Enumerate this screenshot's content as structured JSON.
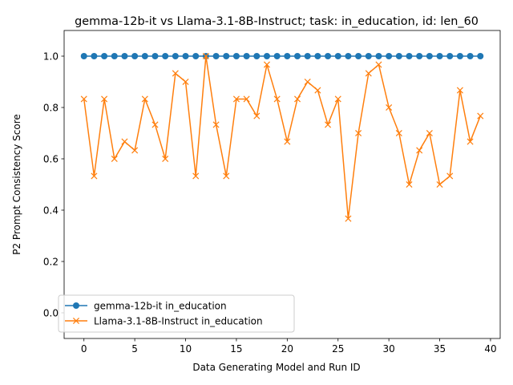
{
  "chart_data": {
    "type": "line",
    "title": "gemma-12b-it vs Llama-3.1-8B-Instruct; task: in_education, id: len_60",
    "xlabel": "Data Generating Model and Run ID",
    "ylabel": "P2 Prompt Consistency Score",
    "xlim": [
      -1.95,
      40.95
    ],
    "ylim": [
      -0.1,
      1.1
    ],
    "xticks": [
      0,
      5,
      10,
      15,
      20,
      25,
      30,
      35,
      40
    ],
    "yticks": [
      0.0,
      0.2,
      0.4,
      0.6,
      0.8,
      1.0
    ],
    "xtick_labels": [
      "0",
      "5",
      "10",
      "15",
      "20",
      "25",
      "30",
      "35",
      "40"
    ],
    "ytick_labels": [
      "0.0",
      "0.2",
      "0.4",
      "0.6",
      "0.8",
      "1.0"
    ],
    "grid": false,
    "legend_position": "lower-left",
    "x": [
      0,
      1,
      2,
      3,
      4,
      5,
      6,
      7,
      8,
      9,
      10,
      11,
      12,
      13,
      14,
      15,
      16,
      17,
      18,
      19,
      20,
      21,
      22,
      23,
      24,
      25,
      26,
      27,
      28,
      29,
      30,
      31,
      32,
      33,
      34,
      35,
      36,
      37,
      38,
      39
    ],
    "series": [
      {
        "name": "gemma-12b-it in_education",
        "color": "#1f77b4",
        "marker": "circle",
        "values": [
          1,
          1,
          1,
          1,
          1,
          1,
          1,
          1,
          1,
          1,
          1,
          1,
          1,
          1,
          1,
          1,
          1,
          1,
          1,
          1,
          1,
          1,
          1,
          1,
          1,
          1,
          1,
          1,
          1,
          1,
          1,
          1,
          1,
          1,
          1,
          1,
          1,
          1,
          1,
          1
        ]
      },
      {
        "name": "Llama-3.1-8B-Instruct in_education",
        "color": "#ff7f0e",
        "marker": "x",
        "values": [
          0.833,
          0.533,
          0.833,
          0.6,
          0.667,
          0.633,
          0.833,
          0.733,
          0.6,
          0.933,
          0.9,
          0.533,
          1.0,
          0.733,
          0.533,
          0.833,
          0.833,
          0.767,
          0.967,
          0.833,
          0.667,
          0.833,
          0.9,
          0.867,
          0.733,
          0.833,
          0.367,
          0.7,
          0.933,
          0.967,
          0.8,
          0.7,
          0.5,
          0.633,
          0.7,
          0.5,
          0.533,
          0.867,
          0.667,
          0.767
        ]
      }
    ]
  }
}
